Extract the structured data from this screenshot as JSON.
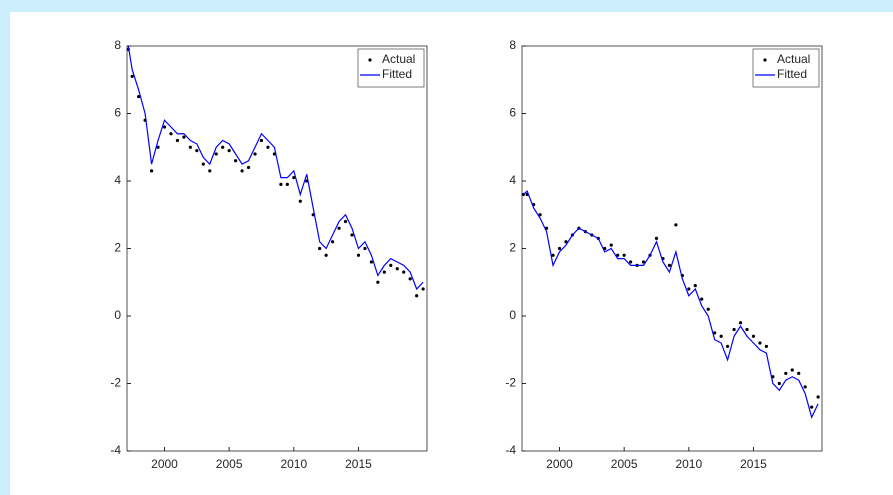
{
  "chart_data": [
    {
      "type": "line",
      "x": [
        1997.2,
        1997.5,
        1998,
        1998.5,
        1999,
        1999.5,
        2000,
        2000.5,
        2001,
        2001.5,
        2002,
        2002.5,
        2003,
        2003.5,
        2004,
        2004.5,
        2005,
        2005.5,
        2006,
        2006.5,
        2007,
        2007.5,
        2008,
        2008.5,
        2009,
        2009.5,
        2010,
        2010.5,
        2011,
        2011.5,
        2012,
        2012.5,
        2013,
        2013.5,
        2014,
        2014.5,
        2015,
        2015.5,
        2016,
        2016.5,
        2017,
        2017.5,
        2018,
        2018.5,
        2019,
        2019.5,
        2020
      ],
      "series": [
        {
          "name": "Actual",
          "color": "#000000",
          "style": "points",
          "values": [
            7.9,
            7.1,
            6.5,
            5.8,
            4.3,
            5.0,
            5.6,
            5.4,
            5.2,
            5.3,
            5.0,
            4.9,
            4.5,
            4.3,
            4.8,
            5.0,
            4.9,
            4.6,
            4.3,
            4.4,
            4.8,
            5.2,
            5.0,
            4.8,
            3.9,
            3.9,
            4.1,
            3.4,
            4.0,
            3.0,
            2.0,
            1.8,
            2.2,
            2.6,
            2.8,
            2.4,
            1.8,
            2.0,
            1.6,
            1.0,
            1.3,
            1.5,
            1.4,
            1.3,
            1.1,
            0.6,
            0.8
          ]
        },
        {
          "name": "Fitted",
          "color": "#0000ff",
          "style": "line",
          "values": [
            8.0,
            7.3,
            6.7,
            6.0,
            4.5,
            5.2,
            5.8,
            5.6,
            5.4,
            5.4,
            5.2,
            5.1,
            4.7,
            4.5,
            5.0,
            5.2,
            5.1,
            4.8,
            4.5,
            4.6,
            5.0,
            5.4,
            5.2,
            5.0,
            4.1,
            4.1,
            4.3,
            3.6,
            4.2,
            3.2,
            2.2,
            2.0,
            2.4,
            2.8,
            3.0,
            2.6,
            2.0,
            2.2,
            1.8,
            1.2,
            1.5,
            1.7,
            1.6,
            1.5,
            1.3,
            0.8,
            1.0
          ]
        }
      ],
      "xlim": [
        1997.1,
        2020.3
      ],
      "xticks": [
        2000,
        2005,
        2010,
        2015
      ],
      "ylim": [
        -4,
        8
      ],
      "yticks": [
        -4,
        -2,
        0,
        2,
        4,
        6,
        8
      ],
      "legend": "northeast"
    },
    {
      "type": "line",
      "x": [
        1997.2,
        1997.5,
        1998,
        1998.5,
        1999,
        1999.5,
        2000,
        2000.5,
        2001,
        2001.5,
        2002,
        2002.5,
        2003,
        2003.5,
        2004,
        2004.5,
        2005,
        2005.5,
        2006,
        2006.5,
        2007,
        2007.5,
        2008,
        2008.5,
        2009,
        2009.5,
        2010,
        2010.5,
        2011,
        2011.5,
        2012,
        2012.5,
        2013,
        2013.5,
        2014,
        2014.5,
        2015,
        2015.5,
        2016,
        2016.5,
        2017,
        2017.5,
        2018,
        2018.5,
        2019,
        2019.5,
        2020
      ],
      "series": [
        {
          "name": "Actual",
          "color": "#000000",
          "style": "points",
          "values": [
            3.6,
            3.6,
            3.3,
            3.0,
            2.6,
            1.8,
            2.0,
            2.2,
            2.4,
            2.6,
            2.5,
            2.4,
            2.3,
            2.0,
            2.1,
            1.8,
            1.8,
            1.6,
            1.5,
            1.6,
            1.8,
            2.3,
            1.7,
            1.5,
            2.7,
            1.2,
            0.8,
            0.9,
            0.5,
            0.2,
            -0.5,
            -0.6,
            -0.9,
            -0.4,
            -0.2,
            -0.4,
            -0.6,
            -0.8,
            -0.9,
            -1.8,
            -2.0,
            -1.7,
            -1.6,
            -1.7,
            -2.1,
            -2.7,
            -2.4
          ]
        },
        {
          "name": "Fitted",
          "color": "#0000ff",
          "style": "line",
          "values": [
            3.6,
            3.7,
            3.2,
            2.9,
            2.5,
            1.5,
            1.9,
            2.1,
            2.4,
            2.6,
            2.5,
            2.4,
            2.3,
            1.9,
            2.0,
            1.7,
            1.7,
            1.5,
            1.5,
            1.5,
            1.8,
            2.2,
            1.6,
            1.3,
            1.9,
            1.1,
            0.6,
            0.8,
            0.3,
            0.0,
            -0.7,
            -0.8,
            -1.3,
            -0.6,
            -0.3,
            -0.6,
            -0.8,
            -1.0,
            -1.1,
            -2.0,
            -2.2,
            -1.9,
            -1.8,
            -1.9,
            -2.3,
            -3.0,
            -2.6
          ]
        }
      ],
      "xlim": [
        1997.1,
        2020.3
      ],
      "xticks": [
        2000,
        2005,
        2010,
        2015
      ],
      "ylim": [
        -4,
        8
      ],
      "yticks": [
        -4,
        -2,
        0,
        2,
        4,
        6,
        8
      ],
      "legend": "northeast"
    }
  ]
}
